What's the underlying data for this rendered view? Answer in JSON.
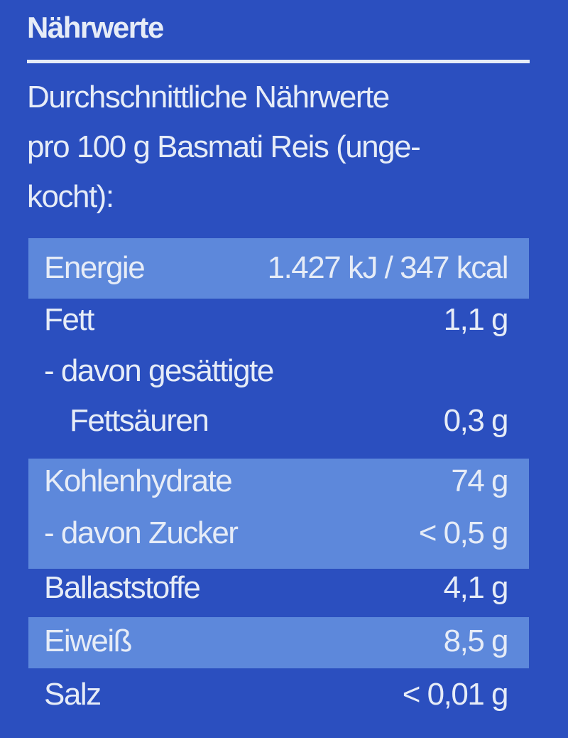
{
  "header": {
    "title": "Nährwerte"
  },
  "intro": {
    "lines": [
      "Durchschnittliche Nährwerte",
      "pro 100 g Basmati Reis (unge-",
      "kocht):"
    ]
  },
  "table": {
    "rows": [
      {
        "label": [
          "Energie"
        ],
        "value": "1.427 kJ / 347 kcal"
      },
      {
        "label": [
          "Fett"
        ],
        "value": "1,1 g"
      },
      {
        "label": [
          "- davon gesättigte",
          "Fettsäuren"
        ],
        "value": "0,3 g"
      },
      {
        "label": [
          "Kohlenhydrate"
        ],
        "value": "74 g"
      },
      {
        "label": [
          "- davon Zucker"
        ],
        "value": "< 0,5 g"
      },
      {
        "label": [
          "Ballaststoffe"
        ],
        "value": "4,1 g"
      },
      {
        "label": [
          "Eiweiß"
        ],
        "value": "8,5 g"
      },
      {
        "label": [
          "Salz"
        ],
        "value": "< 0,01 g"
      }
    ]
  }
}
